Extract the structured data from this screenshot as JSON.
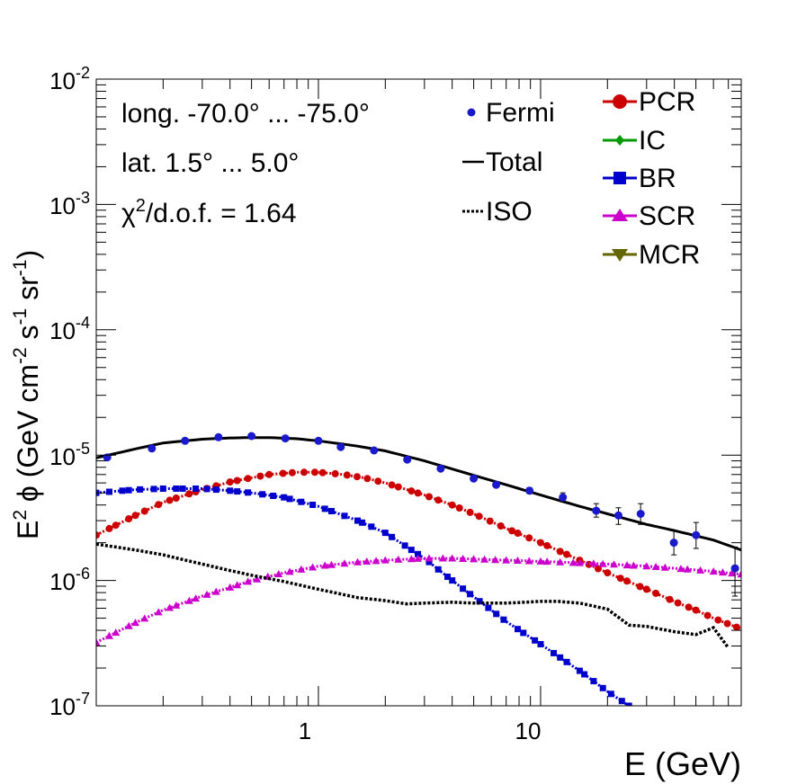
{
  "chart_data": {
    "type": "scatter",
    "xscale": "log",
    "yscale": "log",
    "xlim": [
      0.1,
      80
    ],
    "ylim": [
      1e-07,
      0.01
    ],
    "xlabel": "E (GeV)",
    "ylabel_parts": {
      "pre": "E",
      "sup2": "2",
      "mid": " ϕ (GeV cm",
      "sup_m2": "-2",
      "s": " s",
      "sup_m1a": "-1",
      "sr": " sr",
      "sup_m1b": "-1",
      "close": ")"
    },
    "x_tick_labels": [
      {
        "value": 1,
        "label": "1"
      },
      {
        "value": 10,
        "label": "10"
      }
    ],
    "y_tick_labels": [
      {
        "value": 1e-07,
        "base": "10",
        "exp": "-7"
      },
      {
        "value": 1e-06,
        "base": "10",
        "exp": "-6"
      },
      {
        "value": 1e-05,
        "base": "10",
        "exp": "-5"
      },
      {
        "value": 0.0001,
        "base": "10",
        "exp": "-4"
      },
      {
        "value": 0.001,
        "base": "10",
        "exp": "-3"
      },
      {
        "value": 0.01,
        "base": "10",
        "exp": "-2"
      }
    ],
    "annotations": {
      "longitude": "long. -70.0° ... -75.0°",
      "latitude": "lat. 1.5° ... 5.0°",
      "chi2_pre": "χ",
      "chi2_sup": "2",
      "chi2_post": "/d.o.f. = 1.64"
    },
    "legend_left": [
      {
        "name": "Fermi",
        "style": "point",
        "color": "#1a1acc"
      },
      {
        "name": "Total",
        "style": "line",
        "color": "#000000"
      },
      {
        "name": "ISO",
        "style": "dotted",
        "color": "#000000"
      }
    ],
    "legend_right": [
      {
        "name": "PCR",
        "marker": "circle",
        "color": "#cc0000"
      },
      {
        "name": "IC",
        "marker": "diamond",
        "color": "#009900"
      },
      {
        "name": "BR",
        "marker": "square",
        "color": "#0000cc"
      },
      {
        "name": "SCR",
        "marker": "triangle-up",
        "color": "#cc00cc"
      },
      {
        "name": "MCR",
        "marker": "triangle-down",
        "color": "#666600"
      }
    ],
    "fermi": {
      "x": [
        0.112,
        0.178,
        0.251,
        0.355,
        0.5,
        0.71,
        1.0,
        1.26,
        1.78,
        2.51,
        3.55,
        5.0,
        6.31,
        8.91,
        12.6,
        17.8,
        22.4,
        28.2,
        39.8,
        50.1,
        75.0
      ],
      "y": [
        9.6e-06,
        1.13e-05,
        1.3e-05,
        1.39e-05,
        1.42e-05,
        1.36e-05,
        1.3e-05,
        1.16e-05,
        1.09e-05,
        9.2e-06,
        7.8e-06,
        6.5e-06,
        5.8e-06,
        5.2e-06,
        4.6e-06,
        3.6e-06,
        3.3e-06,
        3.4e-06,
        2e-06,
        2.3e-06,
        1.25e-06
      ],
      "yerr_lo": [
        0,
        0,
        0,
        0,
        0,
        0,
        0,
        0,
        0,
        0,
        0,
        0,
        0,
        2e-07,
        3e-07,
        4e-07,
        5e-07,
        6e-07,
        4e-07,
        5e-07,
        5e-07
      ],
      "yerr_hi": [
        0,
        0,
        0,
        0,
        0,
        0,
        0,
        0,
        0,
        0,
        0,
        0,
        0,
        3e-07,
        4e-07,
        5e-07,
        5e-07,
        7e-07,
        5e-07,
        6e-07,
        6e-07
      ],
      "color": "#1a1acc"
    },
    "series": [
      {
        "name": "Total",
        "color": "#000000",
        "style": "solid",
        "x": [
          0.1,
          0.15,
          0.2,
          0.3,
          0.4,
          0.5,
          0.6,
          0.8,
          1.0,
          1.5,
          2.0,
          3.0,
          5.0,
          7.0,
          10,
          15,
          20,
          30,
          40,
          60,
          80
        ],
        "y": [
          9.5e-06,
          1.12e-05,
          1.25e-05,
          1.34e-05,
          1.37e-05,
          1.38e-05,
          1.38e-05,
          1.35e-05,
          1.3e-05,
          1.18e-05,
          1.08e-05,
          9e-06,
          6.9e-06,
          5.8e-06,
          4.8e-06,
          3.9e-06,
          3.4e-06,
          2.8e-06,
          2.5e-06,
          2.1e-06,
          1.75e-06
        ]
      },
      {
        "name": "PCR",
        "color": "#cc0000",
        "style": "markers",
        "marker": "circle",
        "x": [
          0.1,
          0.15,
          0.2,
          0.3,
          0.4,
          0.5,
          0.6,
          0.8,
          1.0,
          1.3,
          1.6,
          2.0,
          3.0,
          4.0,
          5.0,
          7.0,
          10,
          15,
          20,
          30,
          40,
          50,
          60,
          80
        ],
        "y": [
          2.3e-06,
          3.3e-06,
          4.2e-06,
          5.3e-06,
          6.1e-06,
          6.6e-06,
          7e-06,
          7.3e-06,
          7.3e-06,
          7e-06,
          6.6e-06,
          6e-06,
          4.8e-06,
          4e-06,
          3.4e-06,
          2.6e-06,
          2e-06,
          1.45e-06,
          1.15e-06,
          8.5e-07,
          6.8e-07,
          5.8e-07,
          5e-07,
          4.1e-07
        ]
      },
      {
        "name": "BR",
        "color": "#0000cc",
        "style": "markers",
        "marker": "square",
        "x": [
          0.1,
          0.15,
          0.2,
          0.3,
          0.4,
          0.5,
          0.7,
          1.0,
          1.5,
          2.0,
          3.0,
          4.0,
          5.0,
          6.0,
          7.0,
          10,
          15,
          20,
          25
        ],
        "y": [
          5e-06,
          5.3e-06,
          5.4e-06,
          5.4e-06,
          5.2e-06,
          5e-06,
          4.6e-06,
          3.9e-06,
          3e-06,
          2.4e-06,
          1.5e-06,
          1e-06,
          7.4e-07,
          5.8e-07,
          4.7e-07,
          3.1e-07,
          1.9e-07,
          1.3e-07,
          1e-07
        ]
      },
      {
        "name": "SCR",
        "color": "#cc00cc",
        "style": "markers",
        "marker": "triangle-up",
        "x": [
          0.1,
          0.15,
          0.2,
          0.3,
          0.4,
          0.5,
          0.7,
          1.0,
          1.5,
          2.0,
          3.0,
          4.0,
          5.0,
          7.0,
          10,
          15,
          20,
          30,
          40,
          60,
          80
        ],
        "y": [
          3.2e-07,
          4.6e-07,
          5.8e-07,
          7.5e-07,
          8.8e-07,
          1e-06,
          1.15e-06,
          1.3e-06,
          1.4e-06,
          1.45e-06,
          1.5e-06,
          1.5e-06,
          1.48e-06,
          1.45e-06,
          1.42e-06,
          1.38e-06,
          1.35e-06,
          1.3e-06,
          1.25e-06,
          1.18e-06,
          1.12e-06
        ]
      },
      {
        "name": "ISO",
        "color": "#000000",
        "style": "dotted",
        "x": [
          0.1,
          0.15,
          0.2,
          0.3,
          0.4,
          0.5,
          0.7,
          1.0,
          1.5,
          2.0,
          2.5,
          3.0,
          4.0,
          5.0,
          7.0,
          10,
          12,
          15,
          20,
          25,
          30,
          40,
          50,
          60,
          70
        ],
        "y": [
          1.95e-06,
          1.75e-06,
          1.6e-06,
          1.35e-06,
          1.2e-06,
          1.1e-06,
          9.8e-07,
          8.5e-07,
          7.3e-07,
          6.9e-07,
          6.5e-07,
          6.6e-07,
          6.7e-07,
          6.6e-07,
          6.6e-07,
          6.8e-07,
          6.8e-07,
          6.6e-07,
          5.9e-07,
          4.4e-07,
          4.3e-07,
          3.9e-07,
          3.7e-07,
          4.2e-07,
          2.9e-07
        ]
      }
    ]
  }
}
